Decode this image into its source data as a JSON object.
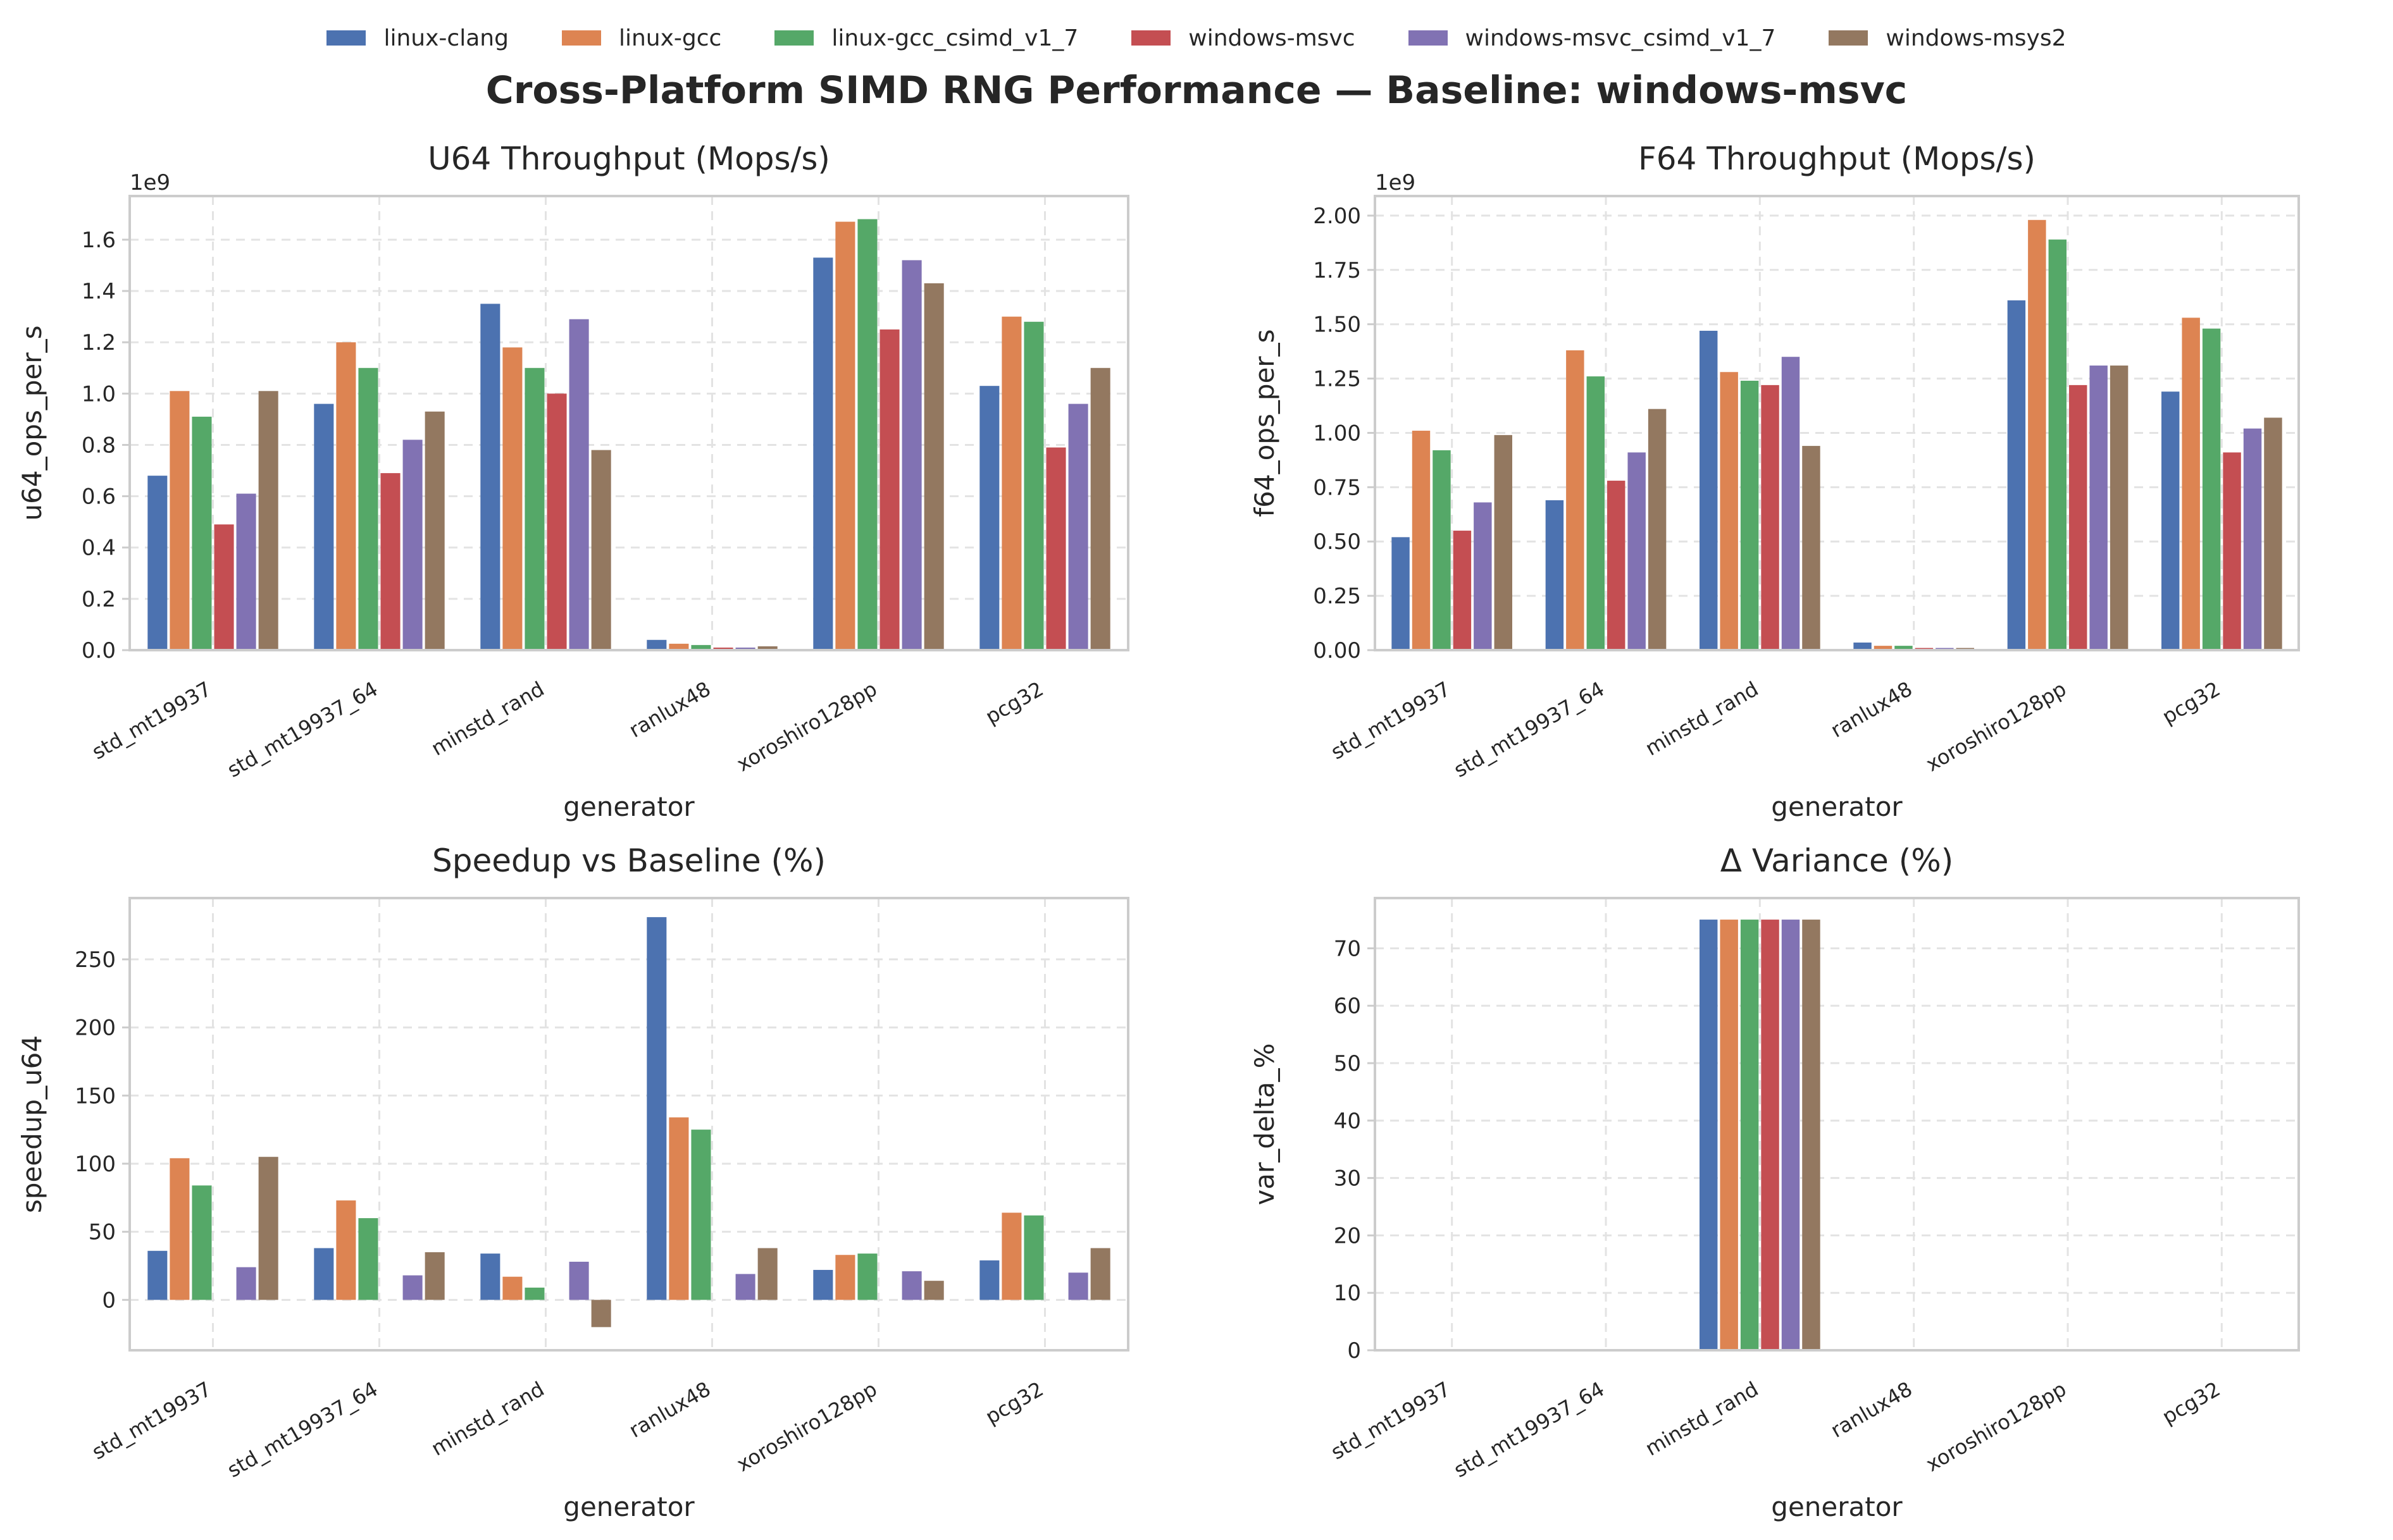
{
  "suptitle": "Cross-Platform SIMD RNG Performance — Baseline: windows-msvc",
  "legend": [
    {
      "label": "linux-clang",
      "color": "#4c72b0"
    },
    {
      "label": "linux-gcc",
      "color": "#dd8452"
    },
    {
      "label": "linux-gcc_csimd_v1_7",
      "color": "#55a868"
    },
    {
      "label": "windows-msvc",
      "color": "#c44e52"
    },
    {
      "label": "windows-msvc_csimd_v1_7",
      "color": "#8172b3"
    },
    {
      "label": "windows-msys2",
      "color": "#937860"
    }
  ],
  "legend_placement": "top-center",
  "chart_data": [
    {
      "type": "bar",
      "title": "U64 Throughput (Mops/s)",
      "xlabel": "generator",
      "ylabel": "u64_ops_per_s",
      "offset_label": "1e9",
      "scale": 1000000000,
      "grid": true,
      "ylim": [
        0,
        1.77
      ],
      "yticks": [
        0,
        0.2,
        0.4,
        0.6,
        0.8,
        1.0,
        1.2,
        1.4,
        1.6
      ],
      "ytick_labels": [
        "0.0",
        "0.2",
        "0.4",
        "0.6",
        "0.8",
        "1.0",
        "1.2",
        "1.4",
        "1.6"
      ],
      "categories": [
        "std_mt19937",
        "std_mt19937_64",
        "minstd_rand",
        "ranlux48",
        "xoroshiro128pp",
        "pcg32"
      ],
      "series": [
        {
          "name": "linux-clang",
          "values": [
            0.68,
            0.96,
            1.35,
            0.04,
            1.53,
            1.03
          ]
        },
        {
          "name": "linux-gcc",
          "values": [
            1.01,
            1.2,
            1.18,
            0.025,
            1.67,
            1.3
          ]
        },
        {
          "name": "linux-gcc_csimd_v1_7",
          "values": [
            0.91,
            1.1,
            1.1,
            0.02,
            1.68,
            1.28
          ]
        },
        {
          "name": "windows-msvc",
          "values": [
            0.49,
            0.69,
            1.0,
            0.01,
            1.25,
            0.79
          ]
        },
        {
          "name": "windows-msvc_csimd_v1_7",
          "values": [
            0.61,
            0.82,
            1.29,
            0.01,
            1.52,
            0.96
          ]
        },
        {
          "name": "windows-msys2",
          "values": [
            1.01,
            0.93,
            0.78,
            0.015,
            1.43,
            1.1
          ]
        }
      ]
    },
    {
      "type": "bar",
      "title": "F64 Throughput (Mops/s)",
      "xlabel": "generator",
      "ylabel": "f64_ops_per_s",
      "offset_label": "1e9",
      "scale": 1000000000,
      "grid": true,
      "ylim": [
        0,
        2.09
      ],
      "yticks": [
        0,
        0.25,
        0.5,
        0.75,
        1.0,
        1.25,
        1.5,
        1.75,
        2.0
      ],
      "ytick_labels": [
        "0.00",
        "0.25",
        "0.50",
        "0.75",
        "1.00",
        "1.25",
        "1.50",
        "1.75",
        "2.00"
      ],
      "categories": [
        "std_mt19937",
        "std_mt19937_64",
        "minstd_rand",
        "ranlux48",
        "xoroshiro128pp",
        "pcg32"
      ],
      "series": [
        {
          "name": "linux-clang",
          "values": [
            0.52,
            0.69,
            1.47,
            0.035,
            1.61,
            1.19
          ]
        },
        {
          "name": "linux-gcc",
          "values": [
            1.01,
            1.38,
            1.28,
            0.02,
            1.98,
            1.53
          ]
        },
        {
          "name": "linux-gcc_csimd_v1_7",
          "values": [
            0.92,
            1.26,
            1.24,
            0.02,
            1.89,
            1.48
          ]
        },
        {
          "name": "windows-msvc",
          "values": [
            0.55,
            0.78,
            1.22,
            0.01,
            1.22,
            0.91
          ]
        },
        {
          "name": "windows-msvc_csimd_v1_7",
          "values": [
            0.68,
            0.91,
            1.35,
            0.01,
            1.31,
            1.02
          ]
        },
        {
          "name": "windows-msys2",
          "values": [
            0.99,
            1.11,
            0.94,
            0.01,
            1.31,
            1.07
          ]
        }
      ]
    },
    {
      "type": "bar",
      "title": "Speedup vs Baseline (%)",
      "xlabel": "generator",
      "ylabel": "speedup_u64",
      "offset_label": "",
      "scale": 1,
      "grid": true,
      "ylim": [
        -37,
        295
      ],
      "yticks": [
        0,
        50,
        100,
        150,
        200,
        250
      ],
      "ytick_labels": [
        "0",
        "50",
        "100",
        "150",
        "200",
        "250"
      ],
      "categories": [
        "std_mt19937",
        "std_mt19937_64",
        "minstd_rand",
        "ranlux48",
        "xoroshiro128pp",
        "pcg32"
      ],
      "series": [
        {
          "name": "linux-clang",
          "values": [
            36,
            38,
            34,
            281,
            22,
            29
          ]
        },
        {
          "name": "linux-gcc",
          "values": [
            104,
            73,
            17,
            134,
            33,
            64
          ]
        },
        {
          "name": "linux-gcc_csimd_v1_7",
          "values": [
            84,
            60,
            9,
            125,
            34,
            62
          ]
        },
        {
          "name": "windows-msvc",
          "values": [
            0,
            0,
            0,
            0,
            0,
            0
          ]
        },
        {
          "name": "windows-msvc_csimd_v1_7",
          "values": [
            24,
            18,
            28,
            19,
            21,
            20
          ]
        },
        {
          "name": "windows-msys2",
          "values": [
            105,
            35,
            -20,
            38,
            14,
            38
          ]
        }
      ]
    },
    {
      "type": "bar",
      "title": "Δ Variance (%)",
      "xlabel": "generator",
      "ylabel": "var_delta_%",
      "offset_label": "",
      "scale": 1,
      "grid": true,
      "ylim": [
        0,
        78.75
      ],
      "yticks": [
        0,
        10,
        20,
        30,
        40,
        50,
        60,
        70
      ],
      "ytick_labels": [
        "0",
        "10",
        "20",
        "30",
        "40",
        "50",
        "60",
        "70"
      ],
      "categories": [
        "std_mt19937",
        "std_mt19937_64",
        "minstd_rand",
        "ranlux48",
        "xoroshiro128pp",
        "pcg32"
      ],
      "series": [
        {
          "name": "linux-clang",
          "values": [
            0,
            0,
            75,
            0,
            0,
            0
          ]
        },
        {
          "name": "linux-gcc",
          "values": [
            0,
            0,
            75,
            0,
            0,
            0
          ]
        },
        {
          "name": "linux-gcc_csimd_v1_7",
          "values": [
            0,
            0,
            75,
            0,
            0,
            0
          ]
        },
        {
          "name": "windows-msvc",
          "values": [
            0,
            0,
            75,
            0,
            0,
            0
          ]
        },
        {
          "name": "windows-msvc_csimd_v1_7",
          "values": [
            0,
            0,
            75,
            0,
            0,
            0
          ]
        },
        {
          "name": "windows-msys2",
          "values": [
            0,
            0,
            75,
            0,
            0,
            0
          ]
        }
      ]
    }
  ]
}
